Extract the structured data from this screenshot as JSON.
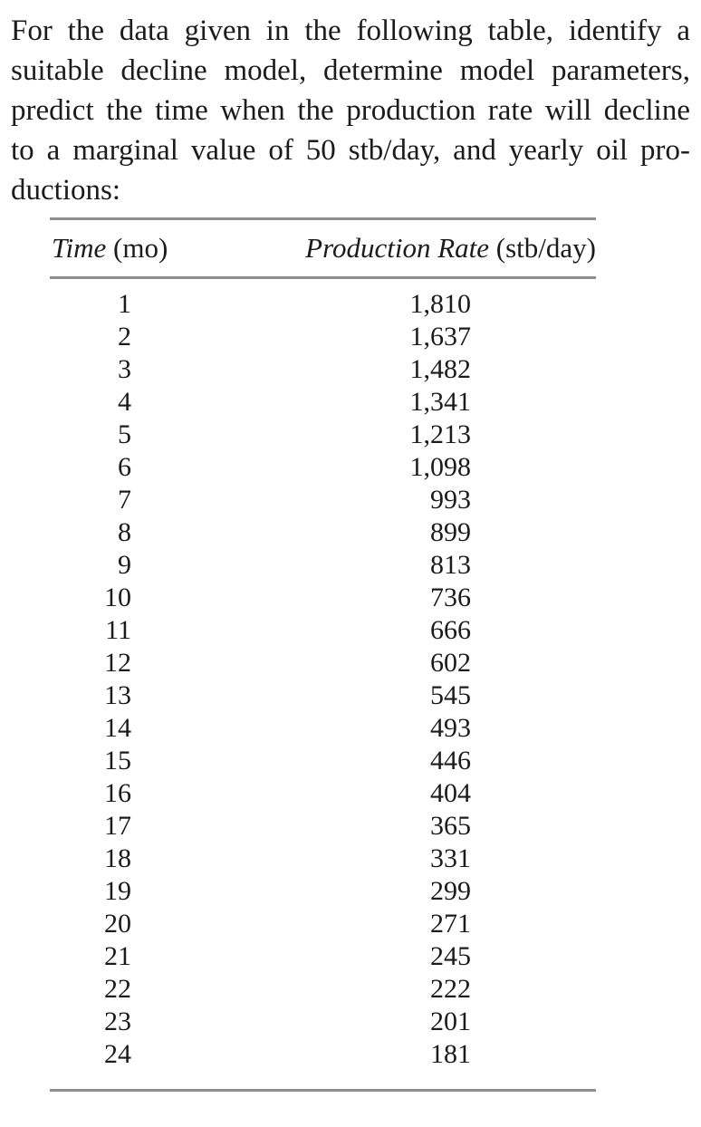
{
  "question": {
    "lines": [
      "For the data given in the following table, identify a",
      "suitable decline model, determine model parameters,",
      "predict the time when the production rate will decline",
      "to a marginal value of 50 stb/day, and yearly oil pro-",
      "ductions:"
    ]
  },
  "table": {
    "header": {
      "time_label": "Time",
      "time_unit": "(mo)",
      "rate_label": "Production Rate",
      "rate_unit": "(stb/day)"
    },
    "rows": [
      {
        "time": "1",
        "rate": "1,810"
      },
      {
        "time": "2",
        "rate": "1,637"
      },
      {
        "time": "3",
        "rate": "1,482"
      },
      {
        "time": "4",
        "rate": "1,341"
      },
      {
        "time": "5",
        "rate": "1,213"
      },
      {
        "time": "6",
        "rate": "1,098"
      },
      {
        "time": "7",
        "rate": "993"
      },
      {
        "time": "8",
        "rate": "899"
      },
      {
        "time": "9",
        "rate": "813"
      },
      {
        "time": "10",
        "rate": "736"
      },
      {
        "time": "11",
        "rate": "666"
      },
      {
        "time": "12",
        "rate": "602"
      },
      {
        "time": "13",
        "rate": "545"
      },
      {
        "time": "14",
        "rate": "493"
      },
      {
        "time": "15",
        "rate": "446"
      },
      {
        "time": "16",
        "rate": "404"
      },
      {
        "time": "17",
        "rate": "365"
      },
      {
        "time": "18",
        "rate": "331"
      },
      {
        "time": "19",
        "rate": "299"
      },
      {
        "time": "20",
        "rate": "271"
      },
      {
        "time": "21",
        "rate": "245"
      },
      {
        "time": "22",
        "rate": "222"
      },
      {
        "time": "23",
        "rate": "201"
      },
      {
        "time": "24",
        "rate": "181"
      }
    ]
  },
  "colors": {
    "text": "#1b1b1b",
    "rule": "#8f8f8f",
    "background": "#ffffff"
  }
}
